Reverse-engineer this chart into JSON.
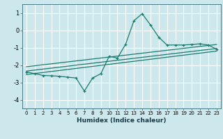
{
  "xlabel": "Humidex (Indice chaleur)",
  "bg_color": "#cce8ec",
  "grid_color": "#ffffff",
  "line_color": "#1a7a6e",
  "xlim": [
    -0.5,
    23.5
  ],
  "ylim": [
    -4.5,
    1.5
  ],
  "yticks": [
    -4,
    -3,
    -2,
    -1,
    0,
    1
  ],
  "xticks": [
    0,
    1,
    2,
    3,
    4,
    5,
    6,
    7,
    8,
    9,
    10,
    11,
    12,
    13,
    14,
    15,
    16,
    17,
    18,
    19,
    20,
    21,
    22,
    23
  ],
  "curve_x": [
    0,
    1,
    2,
    3,
    4,
    5,
    6,
    7,
    8,
    9,
    10,
    11,
    12,
    13,
    14,
    15,
    16,
    17,
    18,
    19,
    20,
    21,
    22,
    23
  ],
  "curve_y": [
    -2.4,
    -2.5,
    -2.6,
    -2.62,
    -2.65,
    -2.7,
    -2.75,
    -3.5,
    -2.75,
    -2.5,
    -1.5,
    -1.6,
    -0.8,
    0.55,
    0.95,
    0.3,
    -0.4,
    -0.85,
    -0.85,
    -0.85,
    -0.82,
    -0.78,
    -0.85,
    -1.1
  ],
  "line1_x": [
    0,
    23
  ],
  "line1_y": [
    -2.35,
    -1.05
  ],
  "line2_x": [
    0,
    23
  ],
  "line2_y": [
    -2.1,
    -0.82
  ],
  "line3_x": [
    0,
    23
  ],
  "line3_y": [
    -2.55,
    -1.2
  ]
}
